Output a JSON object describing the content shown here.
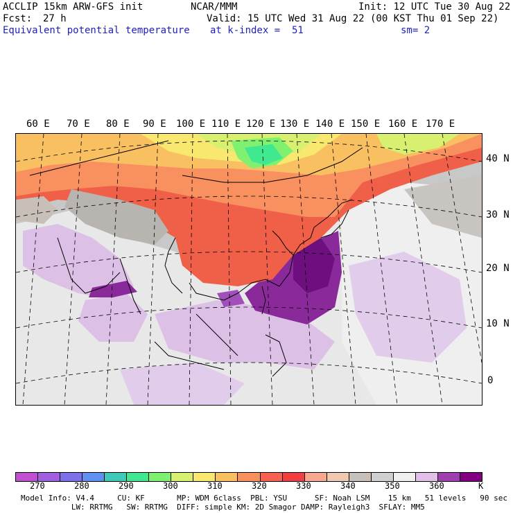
{
  "header": {
    "model": "ACCLIP 15km ARW-GFS init",
    "org": "NCAR/MMM",
    "init": "Init: 12 UTC Tue 30 Aug 22",
    "fcst_label": "Fcst:",
    "fcst_value": "27 h",
    "valid": "Valid: 15 UTC Wed 31 Aug 22 (00 KST Thu 01 Sep 22)",
    "field": "Equivalent potential temperature",
    "kindex": "at k-index =  51",
    "smooth": "sm= 2"
  },
  "map": {
    "lon_labels": [
      "60 E",
      "70 E",
      "80 E",
      "90 E",
      "100 E",
      "110 E",
      "120 E",
      "130 E",
      "140 E",
      "150 E",
      "160 E",
      "170 E"
    ],
    "lat_labels": [
      "40 N",
      "30 N",
      "20 N",
      "10 N",
      "0"
    ]
  },
  "colorbar": {
    "colors": [
      "#c050d0",
      "#a060e0",
      "#8070e8",
      "#6090f0",
      "#40c8b8",
      "#40e890",
      "#80f070",
      "#d8f070",
      "#f8e870",
      "#f8c060",
      "#f89060",
      "#f86050",
      "#f04040",
      "#f8a890",
      "#f0c8b0",
      "#c8c0b8",
      "#d0d0d0",
      "#f0f0f0",
      "#e0c0e8",
      "#a040b0",
      "#800080"
    ],
    "labels": [
      "270",
      "280",
      "290",
      "300",
      "310",
      "320",
      "330",
      "340",
      "350",
      "360"
    ],
    "unit": "K"
  },
  "footer": {
    "line1": "Model Info: V4.4     CU: KF       MP: WDM 6class  PBL: YSU      SF: Noah LSM    15 km   51 levels   90 sec",
    "line2": "           LW: RRTMG   SW: RRTMG  DIFF: simple KM: 2D Smagor DAMP: Rayleigh3  SFLAY: MM5"
  }
}
